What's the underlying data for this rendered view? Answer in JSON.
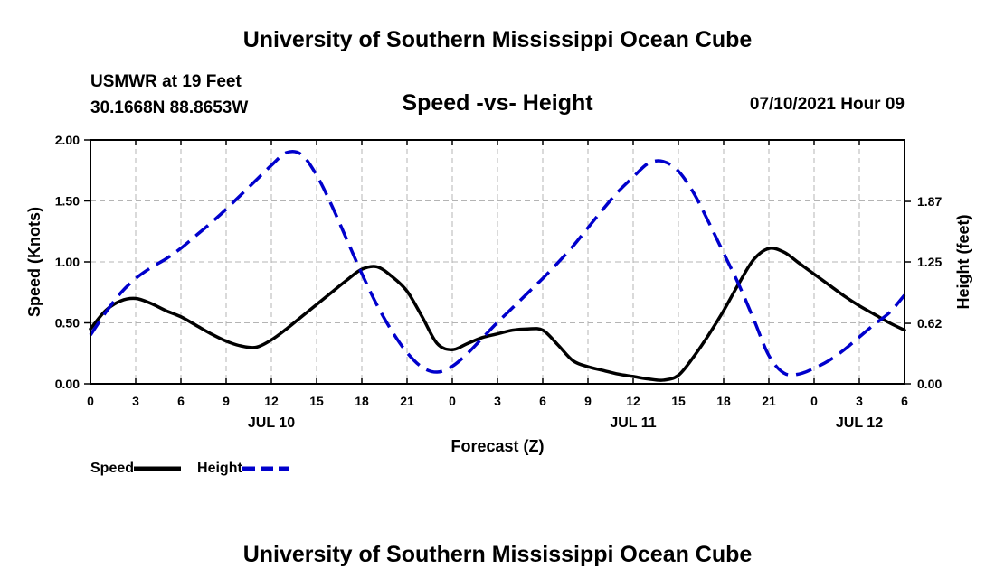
{
  "header": {
    "title": "University of Southern Mississippi Ocean Cube",
    "station_line1": "USMWR at 19 Feet",
    "station_line2": "30.1668N  88.8653W",
    "datetime": "07/10/2021 Hour 09",
    "footer_title": "University of Southern Mississippi Ocean Cube"
  },
  "legend": {
    "speed_label": "Speed",
    "height_label": "Height"
  },
  "colors": {
    "speed": "#000000",
    "height": "#0000cc",
    "grid": "#b4b4b4"
  },
  "chart_data": {
    "type": "line",
    "title": "Speed -vs- Height",
    "xlabel": "Forecast (Z)",
    "ylabel": "Speed (Knots)",
    "y2label": "Height (feet)",
    "xlim": [
      0,
      54
    ],
    "ylim": [
      0,
      2.0
    ],
    "y2lim": [
      0,
      2.5
    ],
    "grid": true,
    "x_ticks": [
      0,
      3,
      6,
      9,
      12,
      15,
      18,
      21,
      24,
      27,
      30,
      33,
      36,
      39,
      42,
      45,
      48,
      51,
      54
    ],
    "x_tick_labels": [
      "0",
      "3",
      "6",
      "9",
      "12",
      "15",
      "18",
      "21",
      "0",
      "3",
      "6",
      "9",
      "12",
      "15",
      "18",
      "21",
      "0",
      "3",
      "6"
    ],
    "y_ticks": [
      0,
      0.5,
      1.0,
      1.5,
      2.0
    ],
    "y_tick_labels": [
      "0.00",
      "0.50",
      "1.00",
      "1.50",
      "2.00"
    ],
    "y2_ticks": [
      0,
      0.62,
      1.25,
      1.87
    ],
    "y2_tick_labels": [
      "0.00",
      "0.62",
      "1.25",
      "1.87"
    ],
    "date_labels": [
      {
        "x": 12,
        "label": "JUL 10"
      },
      {
        "x": 36,
        "label": "JUL 11"
      },
      {
        "x": 51,
        "label": "JUL 12"
      }
    ],
    "series": [
      {
        "name": "Speed",
        "axis": "left",
        "style": "solid",
        "x": [
          0,
          1,
          2,
          3,
          4,
          5,
          6,
          7,
          8,
          9,
          10,
          11,
          12,
          13,
          14,
          15,
          16,
          17,
          18,
          19,
          20,
          21,
          22,
          23,
          24,
          25,
          26,
          27,
          28,
          29,
          30,
          31,
          32,
          33,
          34,
          35,
          36,
          37,
          38,
          39,
          40,
          41,
          42,
          43,
          44,
          45,
          46,
          47,
          48,
          49,
          50,
          51,
          52,
          53,
          54
        ],
        "values": [
          0.45,
          0.6,
          0.68,
          0.7,
          0.66,
          0.6,
          0.55,
          0.48,
          0.41,
          0.35,
          0.31,
          0.3,
          0.36,
          0.45,
          0.55,
          0.65,
          0.75,
          0.85,
          0.94,
          0.96,
          0.88,
          0.76,
          0.55,
          0.33,
          0.28,
          0.33,
          0.38,
          0.41,
          0.44,
          0.45,
          0.44,
          0.32,
          0.19,
          0.14,
          0.11,
          0.08,
          0.06,
          0.04,
          0.03,
          0.07,
          0.22,
          0.4,
          0.6,
          0.82,
          1.02,
          1.11,
          1.08,
          0.99,
          0.9,
          0.81,
          0.72,
          0.64,
          0.57,
          0.5,
          0.44
        ]
      },
      {
        "name": "Height",
        "axis": "right",
        "style": "dashed",
        "x": [
          0,
          1,
          2,
          3,
          4,
          5,
          6,
          7,
          8,
          9,
          10,
          11,
          12,
          13,
          14,
          15,
          16,
          17,
          18,
          19,
          20,
          21,
          22,
          23,
          24,
          25,
          26,
          27,
          28,
          29,
          30,
          31,
          32,
          33,
          34,
          35,
          36,
          37,
          38,
          39,
          40,
          41,
          42,
          43,
          44,
          45,
          46,
          47,
          48,
          49,
          50,
          51,
          52,
          53,
          54
        ],
        "values": [
          0.5,
          0.73,
          0.93,
          1.08,
          1.19,
          1.28,
          1.39,
          1.52,
          1.65,
          1.79,
          1.94,
          2.09,
          2.24,
          2.37,
          2.35,
          2.14,
          1.83,
          1.48,
          1.13,
          0.81,
          0.54,
          0.32,
          0.17,
          0.12,
          0.18,
          0.31,
          0.47,
          0.63,
          0.78,
          0.93,
          1.08,
          1.24,
          1.41,
          1.6,
          1.79,
          1.97,
          2.12,
          2.26,
          2.28,
          2.18,
          1.96,
          1.66,
          1.34,
          1.02,
          0.66,
          0.29,
          0.11,
          0.1,
          0.16,
          0.24,
          0.35,
          0.48,
          0.61,
          0.73,
          0.91
        ]
      }
    ]
  }
}
